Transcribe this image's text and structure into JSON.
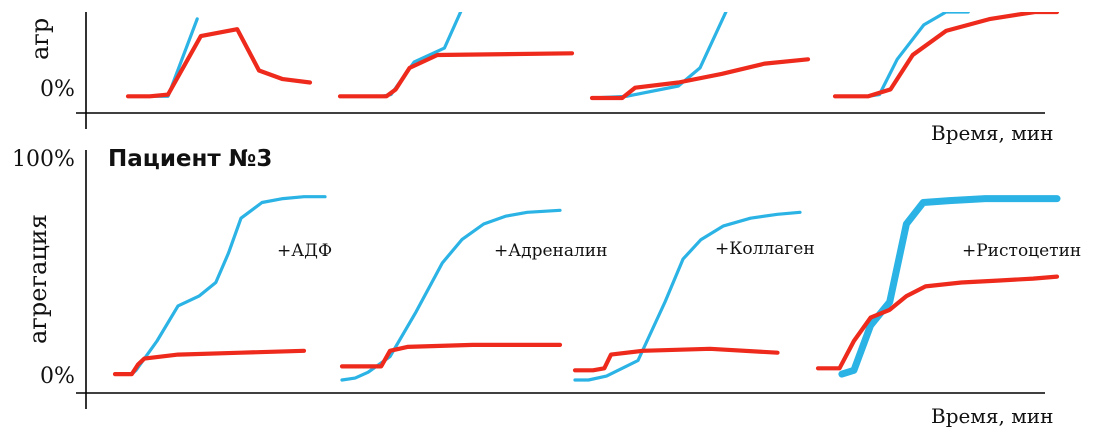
{
  "colors": {
    "control": "#2ab3e4",
    "patient": "#ee2a1c",
    "axis": "#000000"
  },
  "chart_data": [
    {
      "type": "line",
      "panel": "top",
      "title": "",
      "ylabel": "агр",
      "xlabel": "Время, мин",
      "yticks": [
        "0%"
      ],
      "ylim": [
        0,
        100
      ],
      "subplots": [
        {
          "series": [
            {
              "name": "",
              "color": "#2ab3e4",
              "x": [
                0,
                0.22,
                0.38
              ],
              "y": [
                2,
                2,
                92
              ]
            },
            {
              "name": "",
              "color": "#ee2a1c",
              "x": [
                0,
                0.12,
                0.22,
                0.4,
                0.6,
                0.72,
                0.85,
                1
              ],
              "y": [
                2,
                2,
                4,
                72,
                80,
                32,
                22,
                18
              ]
            }
          ]
        },
        {
          "series": [
            {
              "name": "",
              "color": "#2ab3e4",
              "x": [
                0,
                0.18,
                0.22,
                0.32,
                0.45,
                0.52
              ],
              "y": [
                2,
                2,
                4,
                42,
                58,
                100
              ]
            },
            {
              "name": "",
              "color": "#ee2a1c",
              "x": [
                0,
                0.2,
                0.24,
                0.3,
                0.42,
                1
              ],
              "y": [
                2,
                2,
                10,
                35,
                50,
                52
              ]
            }
          ]
        },
        {
          "series": [
            {
              "name": "",
              "color": "#2ab3e4",
              "x": [
                0,
                0.16,
                0.4,
                0.5,
                0.62
              ],
              "y": [
                0,
                2,
                14,
                35,
                100
              ]
            },
            {
              "name": "",
              "color": "#ee2a1c",
              "x": [
                0,
                0.14,
                0.2,
                0.4,
                0.6,
                0.8,
                1
              ],
              "y": [
                0,
                0,
                12,
                18,
                28,
                40,
                45
              ]
            }
          ]
        },
        {
          "series": [
            {
              "name": "",
              "color": "#2ab3e4",
              "x": [
                0,
                0.15,
                0.2,
                0.28,
                0.4,
                0.5,
                0.6
              ],
              "y": [
                2,
                2,
                4,
                45,
                85,
                100,
                100
              ]
            },
            {
              "name": "",
              "color": "#ee2a1c",
              "x": [
                0,
                0.15,
                0.25,
                0.35,
                0.5,
                0.7,
                0.9,
                1
              ],
              "y": [
                2,
                2,
                10,
                50,
                78,
                92,
                100,
                100
              ]
            }
          ]
        }
      ]
    },
    {
      "type": "line",
      "panel": "bottom",
      "title": "Пациент №3",
      "ylabel": "агрегация",
      "xlabel": "Время, мин",
      "yticks": [
        "100%",
        "0%"
      ],
      "ylim": [
        0,
        100
      ],
      "subplots": [
        {
          "annotation": "+АДФ",
          "series": [
            {
              "name": "",
              "color": "#2ab3e4",
              "x": [
                0,
                0.08,
                0.1,
                0.2,
                0.3,
                0.4,
                0.48,
                0.54,
                0.6,
                0.7,
                0.8,
                0.9,
                1
              ],
              "y": [
                3,
                3,
                5,
                20,
                38,
                43,
                50,
                65,
                83,
                91,
                93,
                94,
                94
              ]
            },
            {
              "name": "",
              "color": "#ee2a1c",
              "x": [
                0,
                0.08,
                0.11,
                0.14,
                0.3,
                0.6,
                0.9
              ],
              "y": [
                3,
                3,
                8,
                11,
                13,
                14,
                15
              ]
            }
          ]
        },
        {
          "annotation": "+Адреналин",
          "series": [
            {
              "name": "",
              "color": "#2ab3e4",
              "x": [
                0,
                0.06,
                0.12,
                0.22,
                0.34,
                0.46,
                0.55,
                0.65,
                0.75,
                0.85,
                1
              ],
              "y": [
                0,
                1,
                4,
                12,
                35,
                60,
                72,
                80,
                84,
                86,
                87
              ]
            },
            {
              "name": "",
              "color": "#ee2a1c",
              "x": [
                0,
                0.1,
                0.18,
                0.22,
                0.3,
                0.6,
                1
              ],
              "y": [
                7,
                7,
                7,
                15,
                17,
                18,
                18
              ]
            }
          ]
        },
        {
          "annotation": "+Коллаген",
          "series": [
            {
              "name": "",
              "color": "#2ab3e4",
              "x": [
                0,
                0.06,
                0.14,
                0.28,
                0.4,
                0.48,
                0.56,
                0.66,
                0.78,
                0.9,
                1
              ],
              "y": [
                0,
                0,
                2,
                10,
                40,
                62,
                72,
                79,
                83,
                85,
                86
              ]
            },
            {
              "name": "",
              "color": "#ee2a1c",
              "x": [
                0,
                0.08,
                0.13,
                0.16,
                0.3,
                0.6,
                0.9
              ],
              "y": [
                5,
                5,
                6,
                13,
                15,
                16,
                14
              ]
            }
          ]
        },
        {
          "annotation": "+Ристоцетин",
          "series": [
            {
              "name": "",
              "color": "#2ab3e4",
              "x": [
                0.1,
                0.15,
                0.22,
                0.3,
                0.37,
                0.44,
                0.55,
                0.7,
                0.85,
                1
              ],
              "y": [
                3,
                5,
                28,
                40,
                80,
                91,
                92,
                93,
                93,
                93
              ]
            },
            {
              "name": "",
              "color": "#ee2a1c",
              "x": [
                0,
                0.09,
                0.15,
                0.22,
                0.3,
                0.37,
                0.45,
                0.6,
                0.75,
                0.9,
                1
              ],
              "y": [
                6,
                6,
                20,
                32,
                36,
                43,
                48,
                50,
                51,
                52,
                53
              ]
            }
          ]
        }
      ]
    }
  ]
}
